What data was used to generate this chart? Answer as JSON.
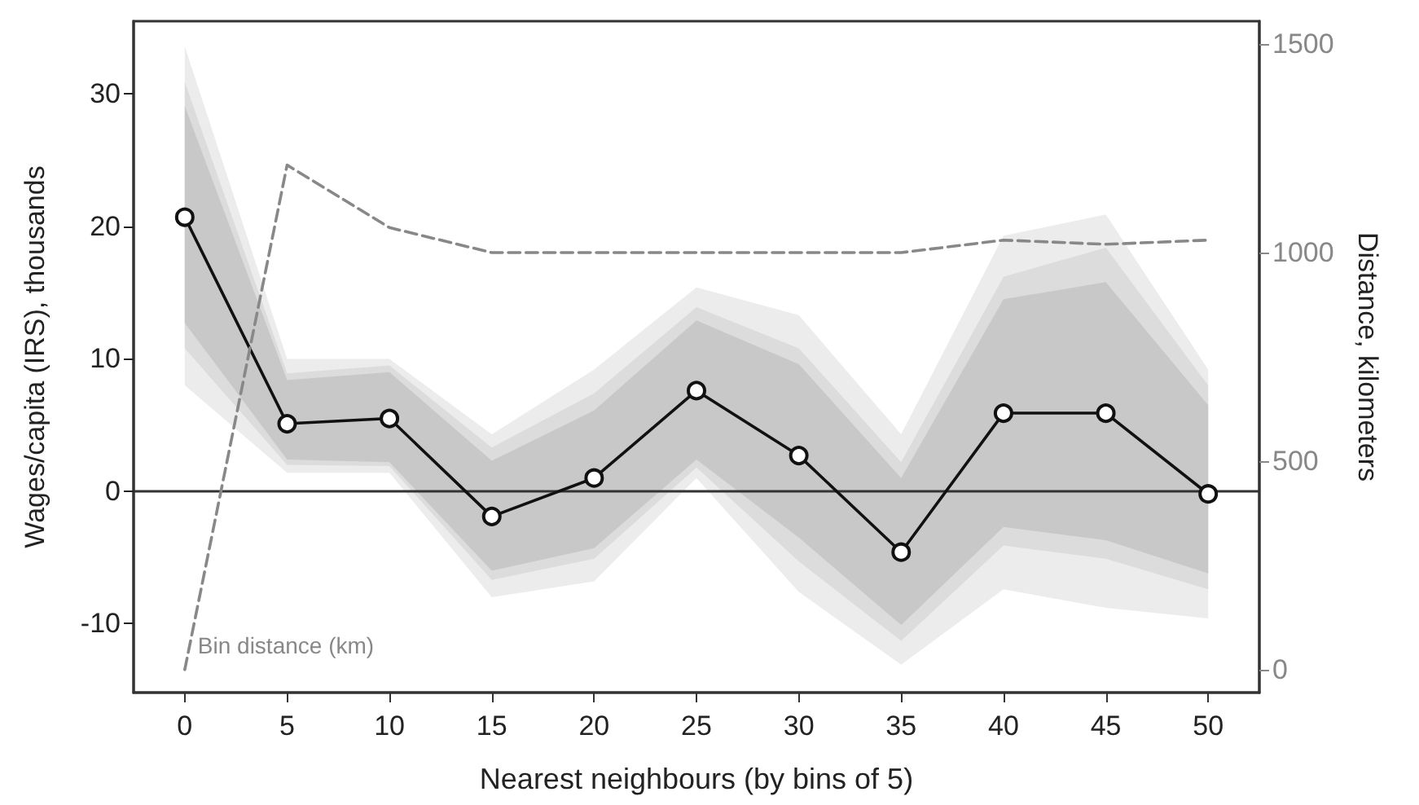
{
  "chart_data": {
    "type": "line",
    "xlabel": "Nearest neighbours (by bins of 5)",
    "ylabel": "Wages/capita (IRS), thousands",
    "y2label": "Distance, kilometers",
    "x": [
      0,
      5,
      10,
      15,
      20,
      25,
      30,
      35,
      40,
      45,
      50
    ],
    "series": [
      {
        "color": "#ececec",
        "values": [
          null,
          null,
          null,
          null,
          null,
          null,
          null,
          null,
          null,
          null,
          null
        ],
        "lower": [
          8.0,
          1.4,
          1.4,
          -8.0,
          -6.8,
          1.0,
          -7.6,
          -13.1,
          -7.4,
          -8.8,
          -9.6
        ],
        "upper": [
          33.6,
          10.0,
          10.0,
          4.3,
          9.2,
          15.4,
          13.3,
          4.3,
          19.3,
          20.9,
          9.2
        ]
      },
      {
        "color": "#dcdcdc",
        "values": [
          null,
          null,
          null,
          null,
          null,
          null,
          null,
          null,
          null,
          null,
          null
        ],
        "lower": [
          10.8,
          2.0,
          1.9,
          -6.7,
          -5.1,
          1.8,
          -5.3,
          -11.3,
          -4.1,
          -5.1,
          -7.4
        ],
        "upper": [
          30.9,
          8.9,
          9.5,
          3.3,
          7.4,
          13.9,
          10.8,
          2.2,
          16.2,
          18.4,
          8.0
        ]
      },
      {
        "color": "#c8c8c8",
        "values": [
          null,
          null,
          null,
          null,
          null,
          null,
          null,
          null,
          null,
          null,
          null
        ],
        "lower": [
          12.7,
          2.4,
          2.2,
          -6.0,
          -4.3,
          2.4,
          -3.5,
          -10.1,
          -2.7,
          -3.7,
          -6.2
        ],
        "upper": [
          29.1,
          8.4,
          9.0,
          2.3,
          6.1,
          12.9,
          9.6,
          1.0,
          14.5,
          15.8,
          6.5
        ]
      },
      {
        "color": "#111111",
        "marker": "circle",
        "values": [
          20.7,
          5.1,
          5.5,
          -1.9,
          1.0,
          7.6,
          2.7,
          -4.6,
          5.9,
          5.9,
          -0.2
        ]
      },
      {
        "name": "Bin distance (km)",
        "axis": "y2",
        "color": "#888888",
        "marker": "none",
        "line_style": "dashed",
        "values": [
          0,
          1210,
          1060,
          1000,
          1000,
          1000,
          1000,
          1000,
          1030,
          1020,
          1030
        ]
      }
    ],
    "xlim": [
      -2.5,
      52.5
    ],
    "xticks": [
      0,
      5,
      10,
      15,
      20,
      25,
      30,
      35,
      40,
      45,
      50
    ],
    "ylim": [
      -15.2,
      35.5
    ],
    "yticks": [
      -10,
      0,
      10,
      20,
      30
    ],
    "y2lim": [
      -55,
      1555
    ],
    "y2ticks": [
      0,
      500,
      1000,
      1500
    ],
    "ref_lines": [
      {
        "axis": "y",
        "value": 0,
        "color": "#333333",
        "line_style": "solid"
      }
    ],
    "line_style": "solid",
    "grid": false,
    "legend": false
  }
}
